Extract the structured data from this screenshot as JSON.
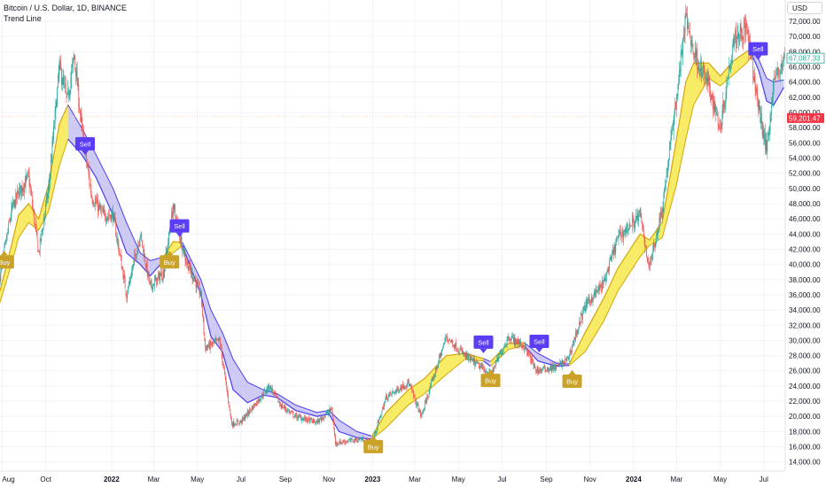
{
  "header": {
    "symbol_line": "Bitcoin / U.S. Dollar, 1D, BINANCE",
    "indicator": "Trend Line"
  },
  "currency_button": "USD",
  "price_badges": {
    "upper": {
      "label": "67,087.33",
      "value": 67087.33,
      "color": "#26a69a"
    },
    "current": {
      "label": "59,201.47",
      "value": 59201.47,
      "color": "#f23645"
    }
  },
  "colors": {
    "up_candle": "#26a69a",
    "down_candle": "#ef5350",
    "bull_fill": "#f7e94c",
    "bull_line": "#d4a40c",
    "bear_fill": "#b8b4f0",
    "bear_line": "#4a3cf0",
    "buy_label": "#c9a227",
    "sell_label": "#5b3df5"
  },
  "chart_data": {
    "type": "candlestick",
    "y_axis": {
      "range": [
        12800,
        74800
      ],
      "ticks": [
        14000,
        16000,
        18000,
        20000,
        22000,
        24000,
        26000,
        28000,
        30000,
        32000,
        34000,
        36000,
        38000,
        40000,
        42000,
        44000,
        46000,
        48000,
        50000,
        52000,
        54000,
        56000,
        58000,
        60000,
        62000,
        64000,
        66000,
        68000,
        70000,
        72000
      ],
      "tick_labels": [
        "14,000.00",
        "16,000.00",
        "18,000.00",
        "20,000.00",
        "22,000.00",
        "24,000.00",
        "26,000.00",
        "28,000.00",
        "30,000.00",
        "32,000.00",
        "34,000.00",
        "36,000.00",
        "38,000.00",
        "40,000.00",
        "42,000.00",
        "44,000.00",
        "46,000.00",
        "48,000.00",
        "50,000.00",
        "52,000.00",
        "54,000.00",
        "56,000.00",
        "58,000.00",
        "60,000.00",
        "62,000.00",
        "64,000.00",
        "66,000.00",
        "68,000.00",
        "70,000.00",
        "72,000.00"
      ]
    },
    "x_axis": {
      "range": [
        "2021-07-29",
        "2024-07-31"
      ],
      "ticks": [
        {
          "date": "2021-08-01",
          "label": "Aug",
          "bold": false
        },
        {
          "date": "2021-10-01",
          "label": "Oct",
          "bold": false
        },
        {
          "date": "2022-01-01",
          "label": "2022",
          "bold": true
        },
        {
          "date": "2022-03-01",
          "label": "Mar",
          "bold": false
        },
        {
          "date": "2022-05-01",
          "label": "May",
          "bold": false
        },
        {
          "date": "2022-07-01",
          "label": "Jul",
          "bold": false
        },
        {
          "date": "2022-09-01",
          "label": "Sep",
          "bold": false
        },
        {
          "date": "2022-11-01",
          "label": "Nov",
          "bold": false
        },
        {
          "date": "2023-01-01",
          "label": "2023",
          "bold": true
        },
        {
          "date": "2023-03-01",
          "label": "Mar",
          "bold": false
        },
        {
          "date": "2023-05-01",
          "label": "May",
          "bold": false
        },
        {
          "date": "2023-07-01",
          "label": "Jul",
          "bold": false
        },
        {
          "date": "2023-09-01",
          "label": "Sep",
          "bold": false
        },
        {
          "date": "2023-11-01",
          "label": "Nov",
          "bold": false
        },
        {
          "date": "2024-01-01",
          "label": "2024",
          "bold": true
        },
        {
          "date": "2024-03-01",
          "label": "Mar",
          "bold": false
        },
        {
          "date": "2024-05-01",
          "label": "May",
          "bold": false
        },
        {
          "date": "2024-07-01",
          "label": "Jul",
          "bold": false
        }
      ]
    },
    "price_path": [
      [
        "2021-07-29",
        38500
      ],
      [
        "2021-08-14",
        47000
      ],
      [
        "2021-08-24",
        49500
      ],
      [
        "2021-09-07",
        51500
      ],
      [
        "2021-09-21",
        41500
      ],
      [
        "2021-10-05",
        50000
      ],
      [
        "2021-10-20",
        66000
      ],
      [
        "2021-10-31",
        61500
      ],
      [
        "2021-11-10",
        67500
      ],
      [
        "2021-11-20",
        58000
      ],
      [
        "2021-12-04",
        49000
      ],
      [
        "2021-12-20",
        46500
      ],
      [
        "2022-01-03",
        46500
      ],
      [
        "2022-01-22",
        36000
      ],
      [
        "2022-02-10",
        44000
      ],
      [
        "2022-02-24",
        37000
      ],
      [
        "2022-03-15",
        39000
      ],
      [
        "2022-03-28",
        47500
      ],
      [
        "2022-04-15",
        40500
      ],
      [
        "2022-05-06",
        36000
      ],
      [
        "2022-05-12",
        29000
      ],
      [
        "2022-06-01",
        30000
      ],
      [
        "2022-06-18",
        19000
      ],
      [
        "2022-07-01",
        19300
      ],
      [
        "2022-08-10",
        24000
      ],
      [
        "2022-08-25",
        21500
      ],
      [
        "2022-09-15",
        20000
      ],
      [
        "2022-10-15",
        19200
      ],
      [
        "2022-11-05",
        21000
      ],
      [
        "2022-11-10",
        16500
      ],
      [
        "2022-12-15",
        17000
      ],
      [
        "2022-12-31",
        16500
      ],
      [
        "2023-01-20",
        22500
      ],
      [
        "2023-02-20",
        24500
      ],
      [
        "2023-03-10",
        20000
      ],
      [
        "2023-04-14",
        30500
      ],
      [
        "2023-05-10",
        28000
      ],
      [
        "2023-06-15",
        25500
      ],
      [
        "2023-07-10",
        30500
      ],
      [
        "2023-08-01",
        29200
      ],
      [
        "2023-08-18",
        26000
      ],
      [
        "2023-09-15",
        26500
      ],
      [
        "2023-10-01",
        27500
      ],
      [
        "2023-10-25",
        34500
      ],
      [
        "2023-11-20",
        37500
      ],
      [
        "2023-12-10",
        43500
      ],
      [
        "2024-01-10",
        46500
      ],
      [
        "2024-01-23",
        39500
      ],
      [
        "2024-02-10",
        47500
      ],
      [
        "2024-03-01",
        62000
      ],
      [
        "2024-03-14",
        72500
      ],
      [
        "2024-03-25",
        68000
      ],
      [
        "2024-04-15",
        63500
      ],
      [
        "2024-05-01",
        58000
      ],
      [
        "2024-05-20",
        70000
      ],
      [
        "2024-06-07",
        71000
      ],
      [
        "2024-06-24",
        60500
      ],
      [
        "2024-07-05",
        55000
      ],
      [
        "2024-07-15",
        64000
      ],
      [
        "2024-07-29",
        67000
      ]
    ],
    "trend_band": [
      {
        "mode": "bull",
        "points": [
          [
            "2021-07-29",
            35000,
            36500
          ],
          [
            "2021-08-14",
            40000,
            42500
          ],
          [
            "2021-08-24",
            43500,
            46500
          ],
          [
            "2021-09-07",
            45500,
            48000
          ],
          [
            "2021-09-21",
            44500,
            46000
          ],
          [
            "2021-10-05",
            47000,
            50500
          ],
          [
            "2021-10-20",
            53000,
            58500
          ],
          [
            "2021-11-01",
            56500,
            61000
          ]
        ]
      },
      {
        "mode": "bear",
        "points": [
          [
            "2021-11-01",
            61000,
            56500
          ],
          [
            "2021-11-20",
            58000,
            54500
          ],
          [
            "2021-12-10",
            54500,
            51500
          ],
          [
            "2022-01-03",
            50000,
            46500
          ],
          [
            "2022-01-22",
            45500,
            41500
          ],
          [
            "2022-02-10",
            41500,
            40000
          ],
          [
            "2022-02-24",
            40500,
            38500
          ],
          [
            "2022-03-15",
            41000,
            40500
          ]
        ]
      },
      {
        "mode": "bull",
        "points": [
          [
            "2022-03-15",
            40500,
            41000
          ],
          [
            "2022-03-28",
            41500,
            43000
          ],
          [
            "2022-04-10",
            42500,
            42900
          ]
        ]
      },
      {
        "mode": "bear",
        "points": [
          [
            "2022-04-10",
            42900,
            42500
          ],
          [
            "2022-05-06",
            38000,
            36000
          ],
          [
            "2022-05-20",
            34000,
            30500
          ],
          [
            "2022-06-05",
            31000,
            28500
          ],
          [
            "2022-06-20",
            27500,
            23500
          ],
          [
            "2022-07-10",
            24500,
            21800
          ],
          [
            "2022-08-01",
            23500,
            22800
          ],
          [
            "2022-08-20",
            23000,
            22500
          ],
          [
            "2022-09-15",
            21500,
            20800
          ],
          [
            "2022-10-15",
            20500,
            20000
          ],
          [
            "2022-11-01",
            20800,
            20300
          ],
          [
            "2022-11-15",
            19500,
            18000
          ],
          [
            "2022-12-10",
            18000,
            17200
          ],
          [
            "2022-12-31",
            17400,
            17000
          ]
        ]
      },
      {
        "mode": "bull",
        "points": [
          [
            "2022-12-31",
            17000,
            17400
          ],
          [
            "2023-01-20",
            18500,
            20500
          ],
          [
            "2023-02-20",
            21500,
            23500
          ],
          [
            "2023-03-15",
            23000,
            25000
          ],
          [
            "2023-04-14",
            25500,
            28000
          ],
          [
            "2023-05-10",
            27500,
            28300
          ],
          [
            "2023-06-05",
            27300,
            27600
          ]
        ]
      },
      {
        "mode": "bear",
        "points": [
          [
            "2023-06-05",
            27600,
            27300
          ],
          [
            "2023-06-15",
            27200,
            26600
          ]
        ]
      },
      {
        "mode": "bull",
        "points": [
          [
            "2023-06-15",
            26600,
            27200
          ],
          [
            "2023-07-10",
            28800,
            29600
          ],
          [
            "2023-08-01",
            29300,
            29700
          ]
        ]
      },
      {
        "mode": "bear",
        "points": [
          [
            "2023-08-01",
            29700,
            29300
          ],
          [
            "2023-08-20",
            28300,
            27300
          ],
          [
            "2023-09-15",
            27000,
            26600
          ],
          [
            "2023-10-03",
            26900,
            26700
          ]
        ]
      },
      {
        "mode": "bull",
        "points": [
          [
            "2023-10-03",
            26700,
            26900
          ],
          [
            "2023-10-25",
            28500,
            31000
          ],
          [
            "2023-11-20",
            32500,
            35500
          ],
          [
            "2023-12-10",
            36500,
            39500
          ],
          [
            "2024-01-10",
            41000,
            44000
          ],
          [
            "2024-01-23",
            42500,
            43200
          ],
          [
            "2024-02-10",
            43500,
            45500
          ],
          [
            "2024-03-01",
            50500,
            56500
          ],
          [
            "2024-03-14",
            56500,
            64000
          ],
          [
            "2024-03-25",
            61000,
            66500
          ],
          [
            "2024-04-15",
            64500,
            66500
          ],
          [
            "2024-05-01",
            63500,
            64800
          ],
          [
            "2024-05-20",
            65000,
            66800
          ],
          [
            "2024-06-07",
            66500,
            68000
          ],
          [
            "2024-06-15",
            67500,
            68500
          ]
        ]
      },
      {
        "mode": "bear",
        "points": [
          [
            "2024-06-15",
            68500,
            67500
          ],
          [
            "2024-06-24",
            67000,
            65500
          ],
          [
            "2024-07-05",
            64500,
            61500
          ],
          [
            "2024-07-15",
            64000,
            61000
          ],
          [
            "2024-07-29",
            64300,
            63300
          ]
        ]
      }
    ],
    "signals": [
      {
        "type": "buy",
        "label": "Buy",
        "date": "2021-08-04",
        "price": 41200
      },
      {
        "type": "sell",
        "label": "Sell",
        "date": "2021-11-25",
        "price": 55000
      },
      {
        "type": "buy",
        "label": "Buy",
        "date": "2022-03-23",
        "price": 41200
      },
      {
        "type": "sell",
        "label": "Sell",
        "date": "2022-04-06",
        "price": 44200
      },
      {
        "type": "buy",
        "label": "Buy",
        "date": "2023-01-02",
        "price": 16900
      },
      {
        "type": "sell",
        "label": "Sell",
        "date": "2023-06-05",
        "price": 28900
      },
      {
        "type": "buy",
        "label": "Buy",
        "date": "2023-06-15",
        "price": 25600
      },
      {
        "type": "sell",
        "label": "Sell",
        "date": "2023-08-22",
        "price": 29000
      },
      {
        "type": "buy",
        "label": "Buy",
        "date": "2023-10-07",
        "price": 25500
      },
      {
        "type": "sell",
        "label": "Sell",
        "date": "2024-06-23",
        "price": 67500
      }
    ],
    "horizontal_line": 59500,
    "grid": true,
    "legend": "none"
  }
}
